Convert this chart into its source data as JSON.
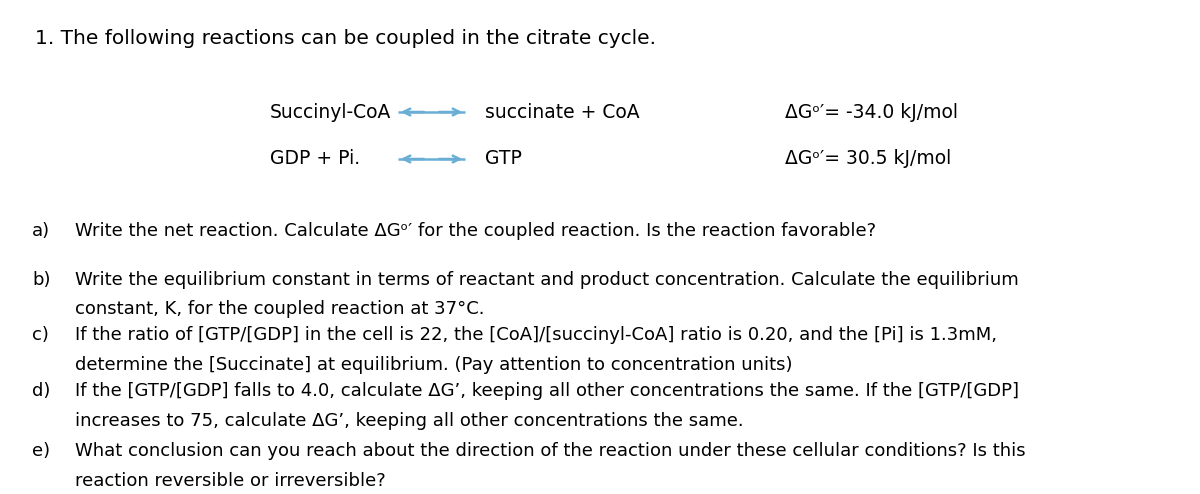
{
  "background_color": "#ffffff",
  "text_color": "#000000",
  "arrow_color": "#6aaed6",
  "title_text": "1. The following reactions can be coupled in the citrate cycle.",
  "title_fontsize": 14.5,
  "reaction_fontsize": 13.5,
  "question_fontsize": 13.0,
  "reaction1_left": "Succinyl-CoA",
  "reaction1_right": "succinate + CoA",
  "reaction1_dg": "ΔGᵒ′= -34.0 kJ/mol",
  "reaction2_left": "GDP + Pi.",
  "reaction2_right": "GTP",
  "reaction2_dg": "ΔGᵒ′= 30.5 kJ/mol",
  "questions": [
    {
      "label": "a)",
      "line1": "Write the net reaction. Calculate ΔGᵒ′ for the coupled reaction. Is the reaction favorable?"
    },
    {
      "label": "b)",
      "line1": "Write the equilibrium constant in terms of reactant and product concentration. Calculate the equilibrium",
      "line2": "constant, K, for the coupled reaction at 37°C."
    },
    {
      "label": "c)",
      "line1": "If the ratio of [GTP/[GDP] in the cell is 22, the [CoA]/[succinyl-CoA] ratio is 0.20, and the [Pi] is 1.3mM,",
      "line2": "determine the [Succinate] at equilibrium. (Pay attention to concentration units)"
    },
    {
      "label": "d)",
      "line1": "If the [GTP/[GDP] falls to 4.0, calculate ΔG’, keeping all other concentrations the same. If the [GTP/[GDP]",
      "line2": "increases to 75, calculate ΔG’, keeping all other concentrations the same."
    },
    {
      "label": "e)",
      "line1": "What conclusion can you reach about the direction of the reaction under these cellular conditions? Is this",
      "line2": "reaction reversible or irreversible?"
    }
  ]
}
